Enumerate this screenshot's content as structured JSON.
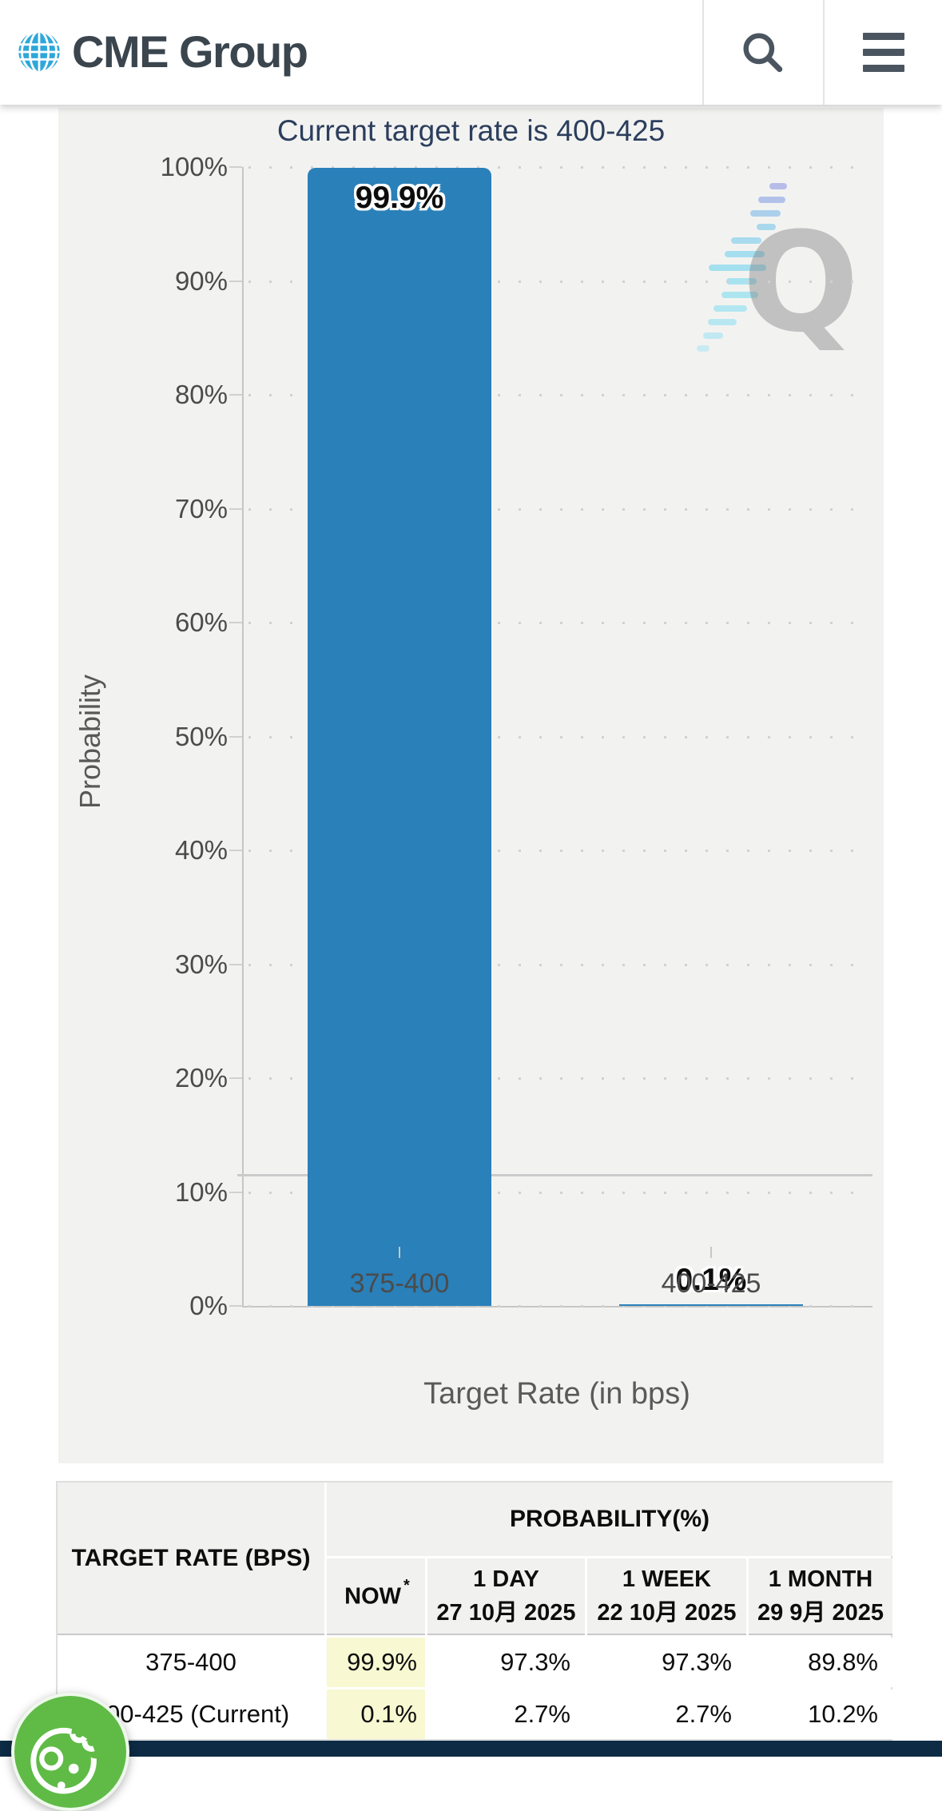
{
  "header": {
    "brand": "CME Group",
    "search_icon": "search",
    "menu_icon": "hamburger-menu"
  },
  "chart_data": {
    "type": "bar",
    "title": "Current target rate is 400-425",
    "categories": [
      "375-400",
      "400-425"
    ],
    "values": [
      99.9,
      0.1
    ],
    "bar_labels": [
      "99.9%",
      "0.1%"
    ],
    "xlabel": "Target Rate (in bps)",
    "ylabel": "Probability",
    "ylim": [
      0,
      100
    ],
    "ytick_step": 10,
    "ytick_suffix": "%",
    "grid": "dotted horizontal gridlines every 10%",
    "legend": "none",
    "reference_line_y": 11.6,
    "bar_color": "#2a80b9",
    "watermark": "Q"
  },
  "table": {
    "row_header": "TARGET RATE (BPS)",
    "group_header": "PROBABILITY(%)",
    "columns": [
      {
        "line1": "NOW",
        "sup": "*",
        "line2": ""
      },
      {
        "line1": "1 DAY",
        "sup": "",
        "line2": "27 10月 2025"
      },
      {
        "line1": "1 WEEK",
        "sup": "",
        "line2": "22 10月 2025"
      },
      {
        "line1": "1 MONTH",
        "sup": "",
        "line2": "29 9月 2025"
      }
    ],
    "rows": [
      {
        "rate": "375-400",
        "now": "99.9%",
        "day": "97.3%",
        "week": "97.3%",
        "month": "89.8%"
      },
      {
        "rate": "400-425 (Current)",
        "now": "0.1%",
        "day": "2.7%",
        "week": "2.7%",
        "month": "10.2%"
      }
    ],
    "now_highlight_color": "#f8f8d2"
  },
  "colors": {
    "bar_blue": "#2a80b9",
    "panel_gray": "#f2f3f1",
    "title_navy": "#2c3e5d",
    "footer_navy": "#0d2b45",
    "logo_blue": "#2fa7d9",
    "logo_text": "#3b454e",
    "widget_green": "#5fbb46",
    "now_yellow": "#f8f8d2"
  }
}
